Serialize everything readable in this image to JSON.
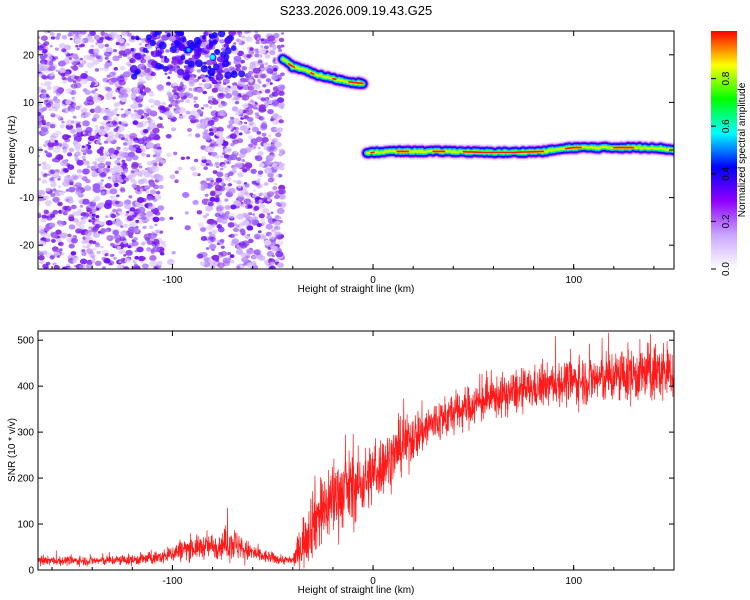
{
  "figure": {
    "title": "S233.2026.009.19.43.G25"
  },
  "chart_data": [
    {
      "type": "heatmap",
      "xlabel": "Height of straight line (km)",
      "ylabel": "Frequency (Hz)",
      "xlim": [
        -167,
        150
      ],
      "ylim": [
        -25,
        25
      ],
      "x_ticks": [
        -100,
        0,
        100
      ],
      "y_ticks": [
        -20,
        -10,
        0,
        10,
        20
      ],
      "colorbar": {
        "label": "Normalized spectral amplitude",
        "range": [
          0,
          1
        ],
        "ticks": [
          "0.0",
          "0.2",
          "0.4",
          "0.6",
          "0.8"
        ],
        "colors": [
          "#ffffff",
          "#c9a6ff",
          "#8f00ff",
          "#0000ff",
          "#00ffff",
          "#00ff00",
          "#ffff00",
          "#ff0000"
        ]
      },
      "noise_region": {
        "x": [
          -167,
          -45
        ],
        "y": [
          -25,
          25
        ],
        "sparse_x": [
          -105,
          -85
        ]
      },
      "ridges": [
        {
          "x": [
            -45,
            -40,
            -35,
            -30,
            -25,
            -20,
            -15,
            -10,
            -5
          ],
          "freq_hz": [
            19,
            17.5,
            17,
            16,
            15.5,
            15,
            14.5,
            14.2,
            14
          ]
        },
        {
          "x": [
            -3,
            0,
            10,
            25,
            40,
            55,
            70,
            85,
            90,
            100,
            110,
            120,
            130,
            140,
            150
          ],
          "freq_hz": [
            -0.8,
            -0.5,
            -0.3,
            -0.3,
            -0.3,
            -0.5,
            -0.5,
            -0.3,
            0,
            0.5,
            0.5,
            0.5,
            0.5,
            0.5,
            0
          ]
        }
      ]
    },
    {
      "type": "line",
      "xlabel": "Height of straight line (km)",
      "ylabel": "SNR (10 * v/v)",
      "xlim": [
        -167,
        150
      ],
      "ylim": [
        0,
        520
      ],
      "x_ticks": [
        -100,
        0,
        100
      ],
      "y_ticks": [
        0,
        100,
        200,
        300,
        400,
        500
      ],
      "color": "#ff0000",
      "series": [
        {
          "envelope_x": [
            -167,
            -140,
            -120,
            -105,
            -95,
            -85,
            -75,
            -70,
            -65,
            -55,
            -45,
            -40,
            -35,
            -30,
            -25,
            -20,
            -15,
            -10,
            -5,
            0,
            5,
            10,
            20,
            30,
            40,
            50,
            60,
            70,
            80,
            90,
            100,
            110,
            120,
            130,
            140,
            150
          ],
          "mean": [
            20,
            20,
            22,
            28,
            45,
            50,
            55,
            60,
            45,
            30,
            22,
            20,
            60,
            110,
            130,
            160,
            170,
            180,
            190,
            210,
            230,
            250,
            290,
            320,
            340,
            360,
            375,
            385,
            395,
            405,
            410,
            415,
            420,
            425,
            430,
            430
          ],
          "spread": [
            10,
            10,
            12,
            15,
            25,
            25,
            30,
            40,
            25,
            15,
            10,
            10,
            60,
            80,
            80,
            90,
            80,
            80,
            70,
            70,
            65,
            60,
            55,
            50,
            45,
            45,
            45,
            45,
            45,
            45,
            50,
            55,
            60,
            60,
            65,
            65
          ]
        }
      ]
    }
  ]
}
